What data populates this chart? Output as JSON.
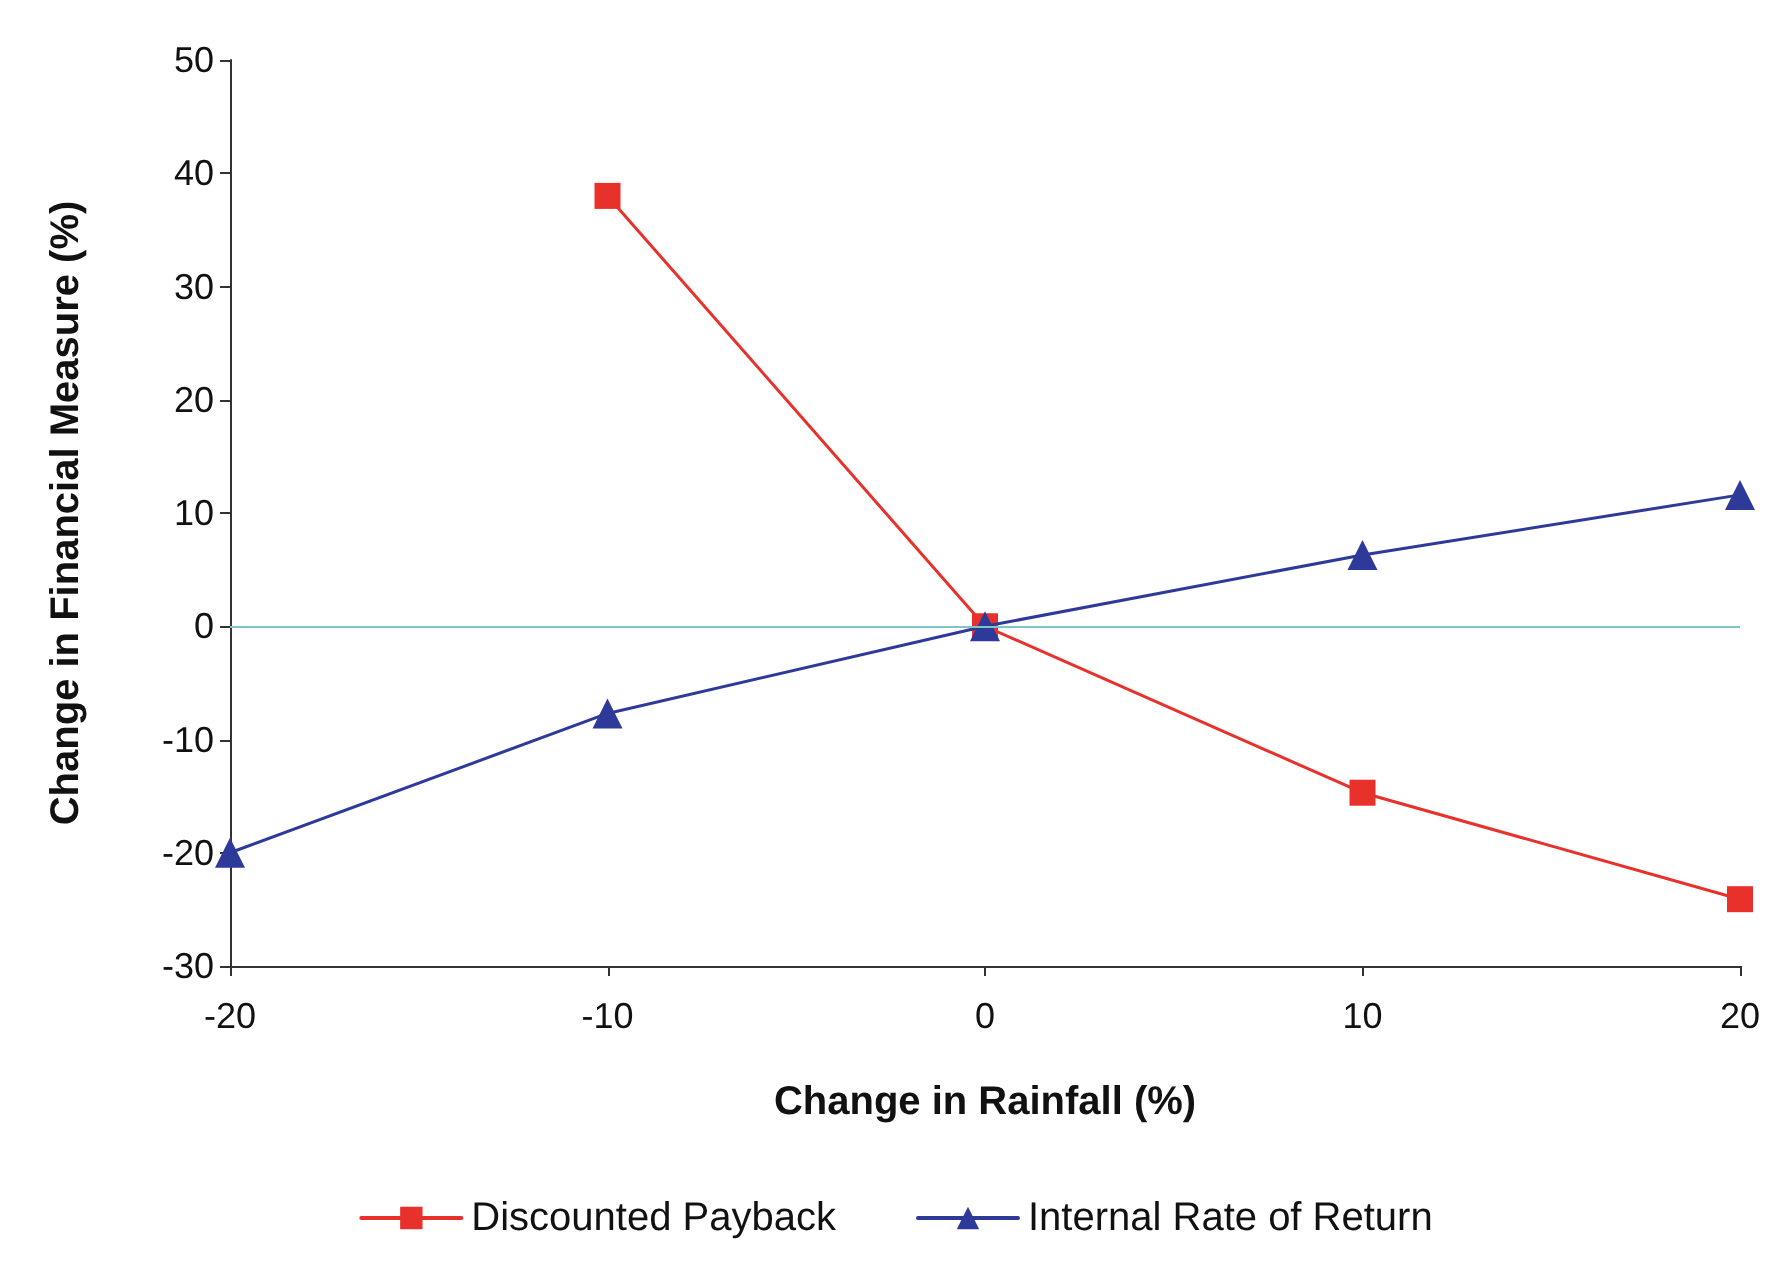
{
  "chart_data": {
    "type": "line",
    "xlabel": "Change in Rainfall (%)",
    "ylabel": "Change in Financial Measure (%)",
    "xlim": [
      -20,
      20
    ],
    "xticks": [
      -20,
      -10,
      0,
      10,
      20
    ],
    "ylim": [
      -30,
      50
    ],
    "yticks": [
      -30,
      -20,
      -10,
      0,
      10,
      20,
      30,
      40,
      50
    ],
    "grid": false,
    "legend": "bottom",
    "line_style": "solid",
    "series": [
      {
        "name": "Discounted Payback",
        "color": "#e8312b",
        "marker": "square",
        "x": [
          -10,
          0,
          10,
          20
        ],
        "values": [
          38,
          0,
          -14.7,
          -24.1
        ]
      },
      {
        "name": "Internal Rate of Return",
        "color": "#2e3a9a",
        "marker": "triangle",
        "x": [
          -20,
          -10,
          0,
          10,
          20
        ],
        "values": [
          -20,
          -7.7,
          0,
          6.3,
          11.6
        ]
      }
    ],
    "ref_lines": [
      {
        "axis": "y",
        "value": 0,
        "color": "#7fc4c8"
      }
    ]
  }
}
